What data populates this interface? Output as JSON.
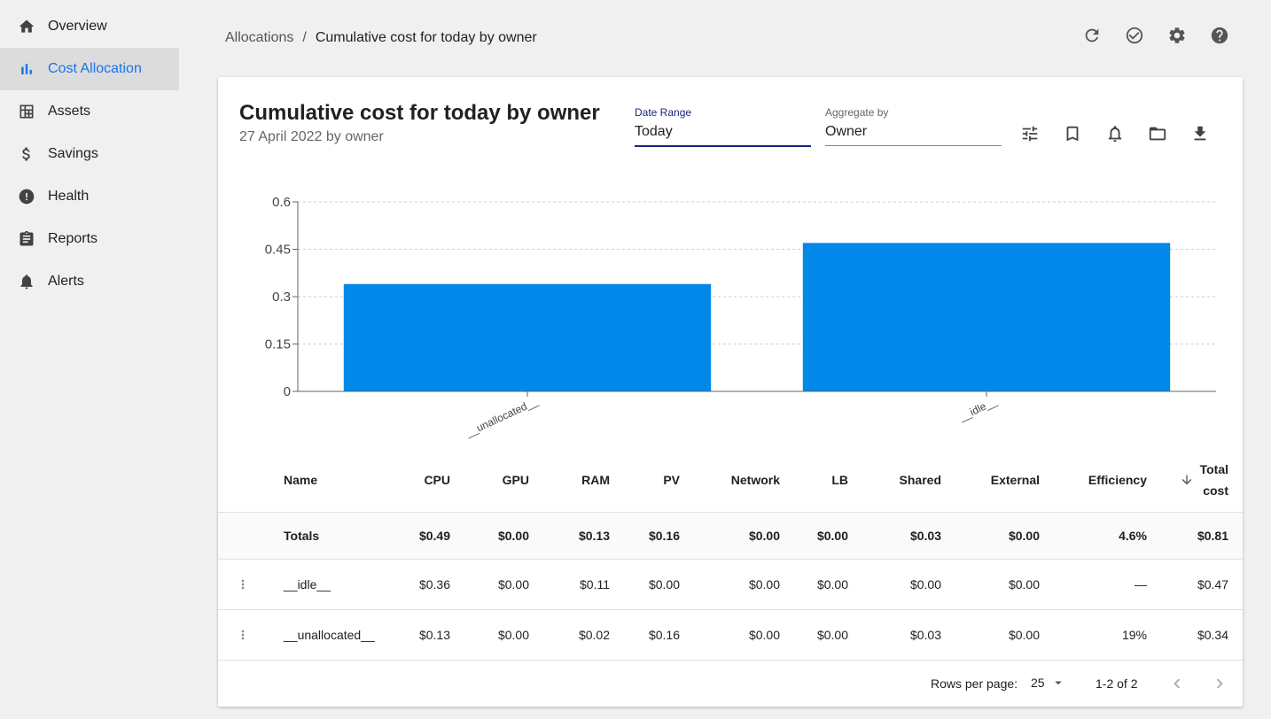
{
  "sidebar": {
    "items": [
      {
        "label": "Overview",
        "icon": "home-icon"
      },
      {
        "label": "Cost Allocation",
        "icon": "bar-chart-icon",
        "active": true
      },
      {
        "label": "Assets",
        "icon": "grid-icon"
      },
      {
        "label": "Savings",
        "icon": "dollar-icon"
      },
      {
        "label": "Health",
        "icon": "alert-circle-icon"
      },
      {
        "label": "Reports",
        "icon": "clipboard-icon"
      },
      {
        "label": "Alerts",
        "icon": "bell-icon"
      }
    ]
  },
  "header": {
    "breadcrumb_root": "Allocations",
    "breadcrumb_separator": "/",
    "breadcrumb_current": "Cumulative cost for today by owner"
  },
  "card": {
    "title": "Cumulative cost for today by owner",
    "subtitle": "27 April 2022 by owner",
    "date_range": {
      "label": "Date Range",
      "value": "Today"
    },
    "aggregate_by": {
      "label": "Aggregate by",
      "value": "Owner"
    }
  },
  "chart_data": {
    "type": "bar",
    "categories": [
      "__unallocated__",
      "__idle__"
    ],
    "values": [
      0.34,
      0.47
    ],
    "ylim": [
      0,
      0.6
    ],
    "yticks": [
      "0",
      "0.15",
      "0.3",
      "0.45",
      "0.6"
    ],
    "ytick_values": [
      0,
      0.15,
      0.3,
      0.45,
      0.6
    ],
    "grid": true,
    "bar_color": "#0288e8"
  },
  "table": {
    "columns": [
      "Name",
      "CPU",
      "GPU",
      "RAM",
      "PV",
      "Network",
      "LB",
      "Shared",
      "External",
      "Efficiency",
      "Total cost"
    ],
    "total_cost_header_line1": "Total",
    "total_cost_header_line2": "cost",
    "totals": [
      "Totals",
      "$0.49",
      "$0.00",
      "$0.13",
      "$0.16",
      "$0.00",
      "$0.00",
      "$0.03",
      "$0.00",
      "4.6%",
      "$0.81"
    ],
    "rows": [
      [
        "__idle__",
        "$0.36",
        "$0.00",
        "$0.11",
        "$0.00",
        "$0.00",
        "$0.00",
        "$0.00",
        "$0.00",
        "—",
        "$0.47"
      ],
      [
        "__unallocated__",
        "$0.13",
        "$0.00",
        "$0.02",
        "$0.16",
        "$0.00",
        "$0.00",
        "$0.03",
        "$0.00",
        "19%",
        "$0.34"
      ]
    ]
  },
  "pagination": {
    "rows_per_page_label": "Rows per page:",
    "rows_per_page_value": "25",
    "range": "1-2 of 2"
  }
}
